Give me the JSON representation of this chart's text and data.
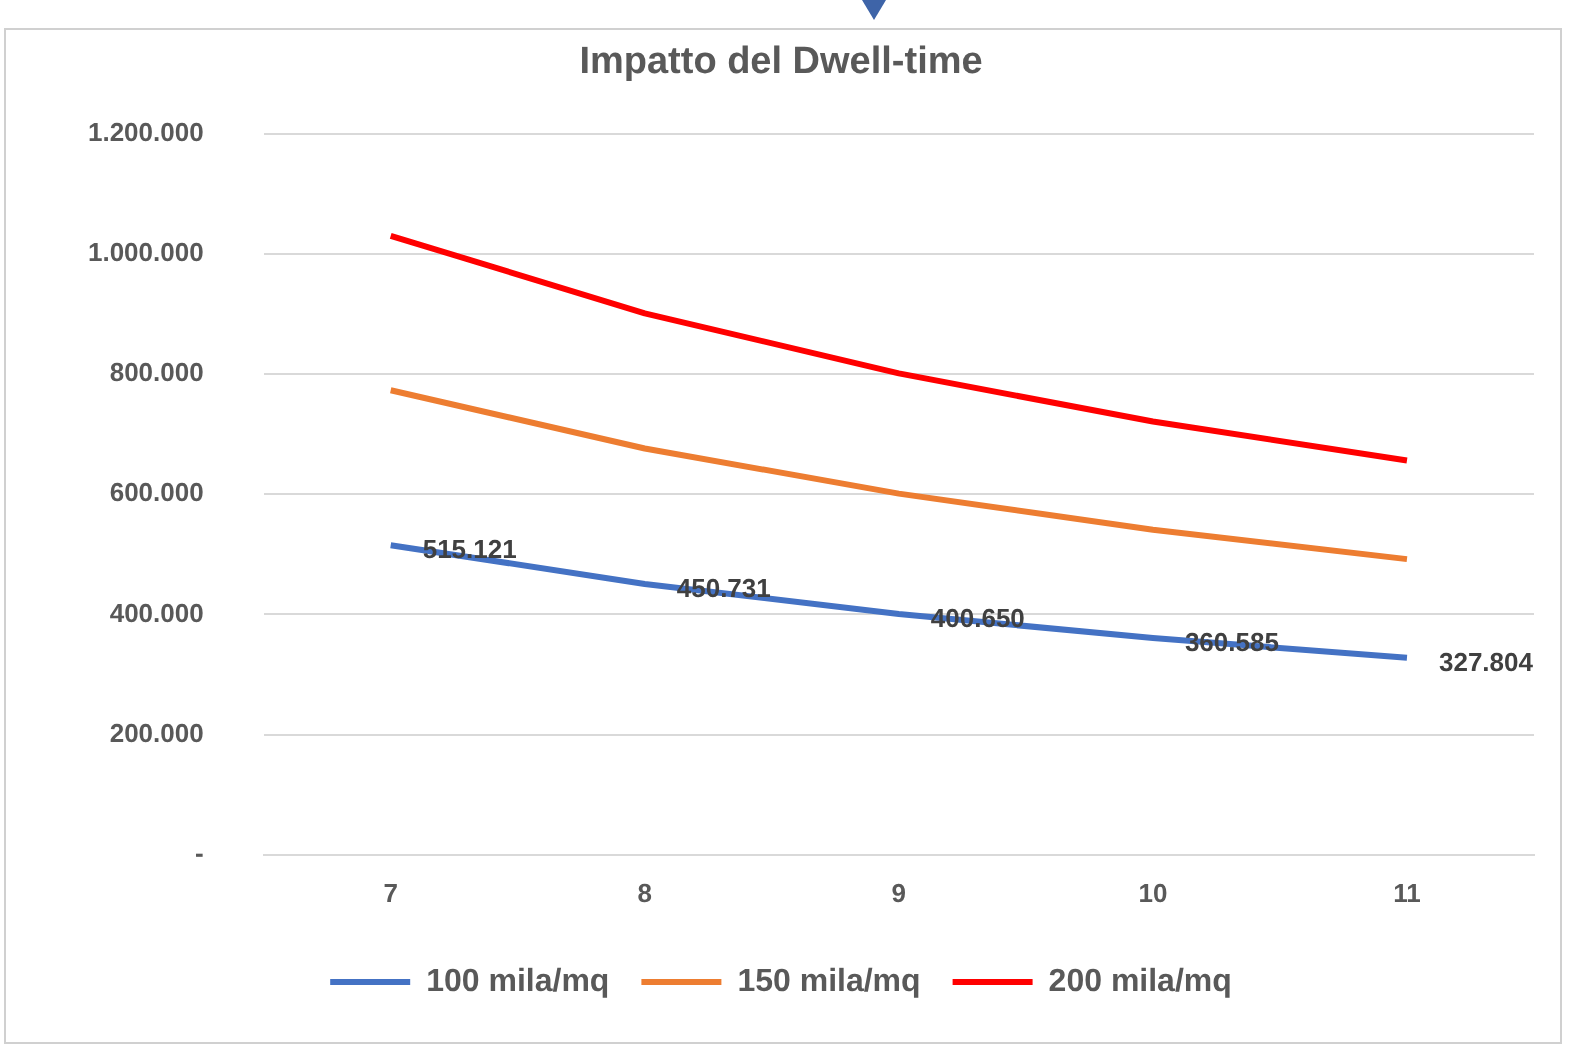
{
  "chart_data": {
    "type": "line",
    "title": "Impatto del Dwell-time",
    "categories": [
      "7",
      "8",
      "9",
      "10",
      "11"
    ],
    "series": [
      {
        "name": "100 mila/mq",
        "color": "#4472c4",
        "values": [
          515121,
          450731,
          400650,
          360585,
          327804
        ],
        "value_labels": [
          "515.121",
          "450.731",
          "400.650",
          "360.585",
          "327.804"
        ]
      },
      {
        "name": "150 mila/mq",
        "color": "#ed7d31",
        "values": [
          773000,
          676000,
          601000,
          541000,
          492000
        ]
      },
      {
        "name": "200 mila/mq",
        "color": "#ff0000",
        "values": [
          1030000,
          901000,
          801000,
          721000,
          656000
        ]
      }
    ],
    "ylim": [
      0,
      1200000
    ],
    "yticks": [
      {
        "value": 0,
        "label": "-"
      },
      {
        "value": 200000,
        "label": "200.000"
      },
      {
        "value": 400000,
        "label": "400.000"
      },
      {
        "value": 600000,
        "label": "600.000"
      },
      {
        "value": 800000,
        "label": "800.000"
      },
      {
        "value": 1000000,
        "label": "1.000.000"
      },
      {
        "value": 1200000,
        "label": "1.200.000"
      }
    ],
    "grid": "y",
    "legend": "bottom",
    "marker": "none",
    "line_style": "solid"
  }
}
